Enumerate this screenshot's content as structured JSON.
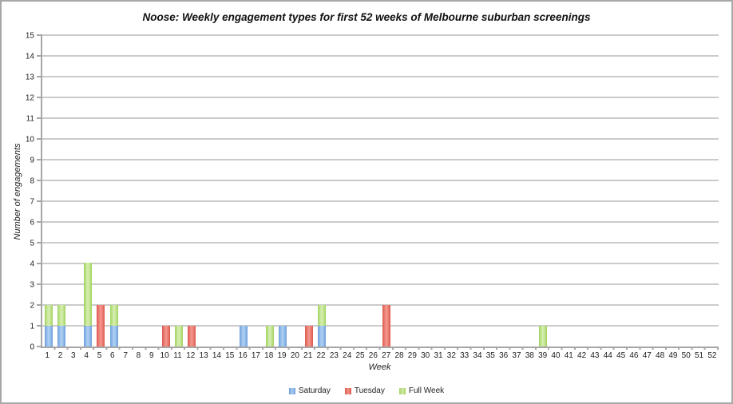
{
  "chart_data": {
    "type": "bar",
    "stacked": true,
    "title": "Noose: Weekly engagement types for first 52 weeks of Melbourne suburban screenings",
    "xlabel": "Week",
    "ylabel": "Number of engagements",
    "ylim": [
      0,
      15
    ],
    "ytick_step": 1,
    "grid": true,
    "legend_position": "bottom",
    "categories": [
      "1",
      "2",
      "3",
      "4",
      "5",
      "6",
      "7",
      "8",
      "9",
      "10",
      "11",
      "12",
      "13",
      "14",
      "15",
      "16",
      "17",
      "18",
      "19",
      "20",
      "21",
      "22",
      "23",
      "24",
      "25",
      "26",
      "27",
      "28",
      "29",
      "30",
      "31",
      "32",
      "33",
      "34",
      "35",
      "36",
      "37",
      "38",
      "39",
      "40",
      "41",
      "42",
      "43",
      "44",
      "45",
      "46",
      "47",
      "48",
      "49",
      "50",
      "51",
      "52"
    ],
    "series": [
      {
        "name": "Saturday",
        "color": "#6d9edb",
        "color_light": "#a9ccf1",
        "values": [
          1,
          1,
          0,
          1,
          0,
          1,
          0,
          0,
          0,
          0,
          0,
          0,
          0,
          0,
          0,
          1,
          0,
          0,
          1,
          0,
          0,
          1,
          0,
          0,
          0,
          0,
          0,
          0,
          0,
          0,
          0,
          0,
          0,
          0,
          0,
          0,
          0,
          0,
          0,
          0,
          0,
          0,
          0,
          0,
          0,
          0,
          0,
          0,
          0,
          0,
          0,
          0
        ]
      },
      {
        "name": "Tuesday",
        "color": "#dc584c",
        "color_light": "#f29289",
        "values": [
          0,
          0,
          0,
          0,
          2,
          0,
          0,
          0,
          0,
          1,
          0,
          1,
          0,
          0,
          0,
          0,
          0,
          0,
          0,
          0,
          1,
          0,
          0,
          0,
          0,
          0,
          2,
          0,
          0,
          0,
          0,
          0,
          0,
          0,
          0,
          0,
          0,
          0,
          0,
          0,
          0,
          0,
          0,
          0,
          0,
          0,
          0,
          0,
          0,
          0,
          0,
          0
        ]
      },
      {
        "name": "Full Week",
        "color": "#a2d25f",
        "color_light": "#d2ecaa",
        "values": [
          1,
          1,
          0,
          3,
          0,
          1,
          0,
          0,
          0,
          0,
          1,
          0,
          0,
          0,
          0,
          0,
          0,
          1,
          0,
          0,
          0,
          1,
          0,
          0,
          0,
          0,
          0,
          0,
          0,
          0,
          0,
          0,
          0,
          0,
          0,
          0,
          0,
          0,
          1,
          0,
          0,
          0,
          0,
          0,
          0,
          0,
          0,
          0,
          0,
          0,
          0,
          0
        ]
      }
    ],
    "colors": {
      "axis": "#a6a6a6",
      "gridline": "#cbcbcb",
      "border": "#a8a8a8"
    }
  }
}
